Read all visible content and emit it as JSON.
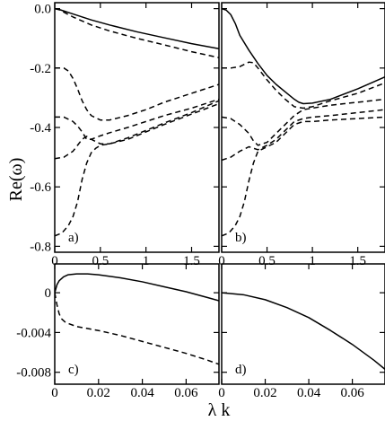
{
  "figure": {
    "ylabel": "Re(ω)",
    "xlabel": "λ k"
  },
  "chart_data": [
    {
      "panel": "a",
      "type": "line",
      "panel_label": "a)",
      "xlim": [
        0,
        1.8
      ],
      "ylim": [
        -0.82,
        0.02
      ],
      "xticks": [
        0,
        0.5,
        1,
        1.5
      ],
      "xtick_labels": [
        "0",
        "0.5",
        "1",
        "1.5"
      ],
      "yticks": [
        0,
        -0.2,
        -0.4,
        -0.6,
        -0.8
      ],
      "ytick_labels": [
        "0.0",
        "-0.2",
        "-0.4",
        "-0.6",
        "-0.8"
      ],
      "series": [
        {
          "style": "solid",
          "x": [
            0,
            0.05,
            0.1,
            0.2,
            0.4,
            0.6,
            0.9,
            1.2,
            1.5,
            1.8
          ],
          "y": [
            0,
            -0.003,
            -0.008,
            -0.018,
            -0.038,
            -0.055,
            -0.078,
            -0.098,
            -0.118,
            -0.135
          ]
        },
        {
          "style": "dashed",
          "x": [
            0,
            0.05,
            0.1,
            0.2,
            0.4,
            0.6,
            0.9,
            1.2,
            1.5,
            1.8
          ],
          "y": [
            0,
            -0.004,
            -0.012,
            -0.028,
            -0.055,
            -0.075,
            -0.1,
            -0.122,
            -0.145,
            -0.165
          ]
        },
        {
          "style": "dashed",
          "x": [
            0,
            0.1,
            0.15,
            0.2,
            0.25,
            0.3,
            0.35,
            0.4,
            0.5,
            0.6,
            0.8,
            1.0,
            1.2,
            1.5,
            1.8
          ],
          "y": [
            -0.2,
            -0.2,
            -0.21,
            -0.235,
            -0.27,
            -0.31,
            -0.34,
            -0.36,
            -0.375,
            -0.375,
            -0.36,
            -0.34,
            -0.315,
            -0.285,
            -0.255
          ]
        },
        {
          "style": "dashed",
          "x": [
            0,
            0.1,
            0.2,
            0.25,
            0.3,
            0.35,
            0.4,
            0.5,
            0.6,
            0.8,
            1.0,
            1.2,
            1.5,
            1.8
          ],
          "y": [
            -0.365,
            -0.365,
            -0.38,
            -0.395,
            -0.415,
            -0.44,
            -0.44,
            -0.428,
            -0.418,
            -0.4,
            -0.38,
            -0.36,
            -0.335,
            -0.305
          ]
        },
        {
          "style": "dashed",
          "x": [
            0,
            0.1,
            0.2,
            0.25,
            0.3,
            0.35,
            0.4,
            0.5,
            0.6,
            0.8,
            1.0,
            1.2,
            1.5,
            1.8
          ],
          "y": [
            -0.505,
            -0.5,
            -0.48,
            -0.46,
            -0.44,
            -0.43,
            -0.44,
            -0.455,
            -0.455,
            -0.435,
            -0.41,
            -0.385,
            -0.35,
            -0.31
          ]
        },
        {
          "style": "dashed",
          "x": [
            0,
            0.08,
            0.15,
            0.2,
            0.25,
            0.3,
            0.35,
            0.4,
            0.45,
            0.5,
            0.6,
            0.8,
            1.0,
            1.2,
            1.5,
            1.8
          ],
          "y": [
            -0.765,
            -0.755,
            -0.73,
            -0.7,
            -0.65,
            -0.575,
            -0.52,
            -0.485,
            -0.47,
            -0.46,
            -0.455,
            -0.44,
            -0.415,
            -0.39,
            -0.355,
            -0.32
          ]
        }
      ]
    },
    {
      "panel": "b",
      "type": "line",
      "panel_label": "b)",
      "xlim": [
        0,
        1.8
      ],
      "ylim": [
        -0.82,
        0.02
      ],
      "xticks": [
        0,
        0.5,
        1,
        1.5
      ],
      "xtick_labels": [
        "0",
        "0.5",
        "1",
        "1.5"
      ],
      "series": [
        {
          "style": "solid",
          "x": [
            0,
            0.05,
            0.1,
            0.15,
            0.2,
            0.3,
            0.4,
            0.5,
            0.6,
            0.7,
            0.8,
            0.85,
            0.9,
            1.0,
            1.2,
            1.5,
            1.8
          ],
          "y": [
            0,
            -0.005,
            -0.02,
            -0.05,
            -0.09,
            -0.14,
            -0.185,
            -0.225,
            -0.255,
            -0.28,
            -0.305,
            -0.315,
            -0.32,
            -0.318,
            -0.305,
            -0.27,
            -0.23
          ]
        },
        {
          "style": "dashed",
          "x": [
            0,
            0.1,
            0.2,
            0.3,
            0.35,
            0.4,
            0.5,
            0.6,
            0.7,
            0.8,
            0.9,
            1.0,
            1.2,
            1.5,
            1.8
          ],
          "y": [
            -0.2,
            -0.2,
            -0.195,
            -0.18,
            -0.182,
            -0.2,
            -0.24,
            -0.275,
            -0.305,
            -0.33,
            -0.335,
            -0.33,
            -0.31,
            -0.285,
            -0.25
          ]
        },
        {
          "style": "dashed",
          "x": [
            0,
            0.1,
            0.2,
            0.3,
            0.35,
            0.4,
            0.5,
            0.6,
            0.8,
            0.9,
            1.0,
            1.2,
            1.5,
            1.8
          ],
          "y": [
            -0.365,
            -0.37,
            -0.39,
            -0.42,
            -0.445,
            -0.46,
            -0.45,
            -0.42,
            -0.36,
            -0.34,
            -0.335,
            -0.325,
            -0.315,
            -0.305
          ]
        },
        {
          "style": "dashed",
          "x": [
            0,
            0.1,
            0.2,
            0.3,
            0.35,
            0.4,
            0.5,
            0.6,
            0.7,
            0.8,
            0.9,
            1.0,
            1.2,
            1.5,
            1.8
          ],
          "y": [
            -0.51,
            -0.5,
            -0.48,
            -0.465,
            -0.47,
            -0.475,
            -0.46,
            -0.44,
            -0.41,
            -0.38,
            -0.37,
            -0.365,
            -0.36,
            -0.35,
            -0.34
          ]
        },
        {
          "style": "dashed",
          "x": [
            0,
            0.08,
            0.15,
            0.2,
            0.25,
            0.3,
            0.35,
            0.4,
            0.5,
            0.6,
            0.7,
            0.8,
            0.9,
            1.0,
            1.2,
            1.5,
            1.8
          ],
          "y": [
            -0.765,
            -0.755,
            -0.73,
            -0.7,
            -0.65,
            -0.58,
            -0.52,
            -0.48,
            -0.465,
            -0.45,
            -0.42,
            -0.39,
            -0.38,
            -0.38,
            -0.375,
            -0.37,
            -0.365
          ]
        }
      ]
    },
    {
      "panel": "c",
      "type": "line",
      "panel_label": "c)",
      "xlim": [
        0,
        0.075
      ],
      "ylim": [
        -0.0092,
        0.0029
      ],
      "xticks": [
        0,
        0.02,
        0.04,
        0.06
      ],
      "xtick_labels": [
        "0",
        "0.02",
        "0.04",
        "0.06"
      ],
      "yticks": [
        0,
        -0.004,
        -0.008
      ],
      "ytick_labels": [
        "0",
        "-0.004",
        "-0.008"
      ],
      "series": [
        {
          "style": "solid",
          "x": [
            0,
            0.001,
            0.002,
            0.004,
            0.006,
            0.01,
            0.015,
            0.02,
            0.03,
            0.04,
            0.05,
            0.06,
            0.07,
            0.075
          ],
          "y": [
            0,
            0.0008,
            0.0012,
            0.0016,
            0.0018,
            0.0019,
            0.0019,
            0.0018,
            0.0015,
            0.0011,
            0.0006,
            0.0001,
            -0.0005,
            -0.0008
          ]
        },
        {
          "style": "dashed",
          "x": [
            0,
            0.001,
            0.002,
            0.003,
            0.005,
            0.01,
            0.02,
            0.03,
            0.04,
            0.05,
            0.06,
            0.07,
            0.075
          ],
          "y": [
            0,
            -0.0012,
            -0.0021,
            -0.0026,
            -0.003,
            -0.0034,
            -0.0038,
            -0.0043,
            -0.0049,
            -0.0055,
            -0.0061,
            -0.0068,
            -0.0072
          ]
        }
      ]
    },
    {
      "panel": "d",
      "type": "line",
      "panel_label": "d)",
      "xlim": [
        0,
        0.075
      ],
      "ylim": [
        -0.0092,
        0.0029
      ],
      "xticks": [
        0,
        0.02,
        0.04,
        0.06
      ],
      "xtick_labels": [
        "0",
        "0.02",
        "0.04",
        "0.06"
      ],
      "series": [
        {
          "style": "solid",
          "x": [
            0,
            0.01,
            0.02,
            0.03,
            0.04,
            0.05,
            0.06,
            0.07,
            0.075
          ],
          "y": [
            0,
            -0.0002,
            -0.0007,
            -0.0015,
            -0.0025,
            -0.0038,
            -0.0052,
            -0.0068,
            -0.0077
          ]
        }
      ]
    }
  ]
}
